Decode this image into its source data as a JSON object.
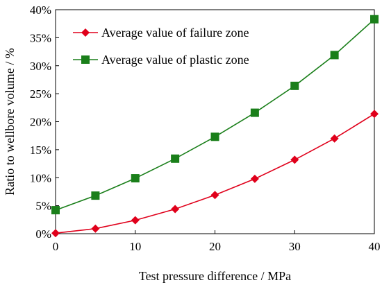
{
  "chart_data": {
    "type": "line",
    "title": "",
    "xlabel": "Test pressure difference / MPa",
    "ylabel": "Ratio to wellbore volume / %",
    "x": [
      0,
      5,
      10,
      15,
      20,
      25,
      30,
      35,
      40
    ],
    "xlim": [
      0,
      40
    ],
    "xticks": [
      "0",
      "10",
      "20",
      "30",
      "40"
    ],
    "ylim": [
      0,
      40
    ],
    "yticks": [
      "0%",
      "5%",
      "10%",
      "15%",
      "20%",
      "25%",
      "30%",
      "35%",
      "40%"
    ],
    "grid": false,
    "legend_position": "top-left",
    "series": [
      {
        "name": "Average value of failure zone",
        "color": "#e0001b",
        "marker": "diamond",
        "values": [
          0.1,
          0.9,
          2.4,
          4.4,
          6.9,
          9.8,
          13.2,
          17.0,
          21.4
        ]
      },
      {
        "name": "Average value of plastic zone",
        "color": "#1a7f1a",
        "marker": "square",
        "values": [
          4.2,
          6.8,
          9.9,
          13.4,
          17.3,
          21.6,
          26.4,
          31.9,
          38.3
        ]
      }
    ]
  }
}
